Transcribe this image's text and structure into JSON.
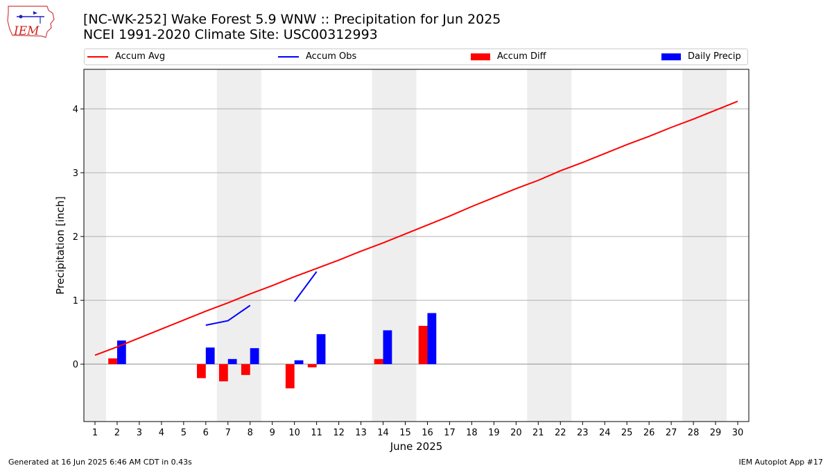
{
  "header": {
    "title_line1": "[NC-WK-252] Wake Forest 5.9 WNW :: Precipitation for Jun 2025",
    "title_line2": "NCEI 1991-2020 Climate Site: USC00312993",
    "logo_text": "IEM"
  },
  "legend": {
    "items": [
      {
        "label": "Accum Avg",
        "kind": "line",
        "color": "#ff0000"
      },
      {
        "label": "Accum Obs",
        "kind": "line",
        "color": "#0000ff"
      },
      {
        "label": "Accum Diff",
        "kind": "rect",
        "color": "#ff0000"
      },
      {
        "label": "Daily Precip",
        "kind": "rect",
        "color": "#0000ff"
      }
    ]
  },
  "footer": {
    "left": "Generated at 16 Jun 2025 6:46 AM CDT in 0.43s",
    "right": "IEM Autoplot App #17"
  },
  "chart_data": {
    "type": "bar",
    "xlabel": "June 2025",
    "ylabel": "Precipitation [inch]",
    "xlim": [
      0.5,
      30.5
    ],
    "ylim": [
      -0.9,
      4.62
    ],
    "yticks": [
      0,
      1,
      2,
      3,
      4
    ],
    "x_tick_labels": [
      "1",
      "2",
      "3",
      "4",
      "5",
      "6",
      "7",
      "8",
      "9",
      "10",
      "11",
      "12",
      "13",
      "14",
      "15",
      "16",
      "17",
      "18",
      "19",
      "20",
      "21",
      "22",
      "23",
      "24",
      "25",
      "26",
      "27",
      "28",
      "29",
      "30"
    ],
    "grid": "horizontal",
    "legend_position": "top",
    "weekend_shading": [
      [
        0.5,
        1.5
      ],
      [
        6.5,
        8.5
      ],
      [
        13.5,
        15.5
      ],
      [
        20.5,
        22.5
      ],
      [
        27.5,
        29.5
      ]
    ],
    "accum_avg": {
      "name": "Accum Avg",
      "color": "#ff0000",
      "x": [
        1,
        2,
        3,
        4,
        5,
        6,
        7,
        8,
        9,
        10,
        11,
        12,
        13,
        14,
        15,
        16,
        17,
        18,
        19,
        20,
        21,
        22,
        23,
        24,
        25,
        26,
        27,
        28,
        29,
        30
      ],
      "y": [
        0.14,
        0.27,
        0.41,
        0.55,
        0.69,
        0.83,
        0.96,
        1.1,
        1.23,
        1.37,
        1.5,
        1.63,
        1.77,
        1.9,
        2.04,
        2.18,
        2.32,
        2.47,
        2.61,
        2.75,
        2.88,
        3.03,
        3.16,
        3.3,
        3.44,
        3.57,
        3.71,
        3.84,
        3.98,
        4.12
      ]
    },
    "accum_obs": {
      "name": "Accum Obs",
      "color": "#0000ff",
      "segments": [
        {
          "x": [
            6,
            7,
            8
          ],
          "y": [
            0.61,
            0.68,
            0.92
          ]
        },
        {
          "x": [
            10,
            11
          ],
          "y": [
            0.98,
            1.45
          ]
        }
      ]
    },
    "accum_diff": {
      "name": "Accum Diff",
      "color": "#ff0000",
      "x": [
        2,
        6,
        7,
        8,
        10,
        11,
        14,
        16
      ],
      "values": [
        0.09,
        -0.22,
        -0.27,
        -0.17,
        -0.38,
        -0.05,
        0.08,
        0.6
      ]
    },
    "daily_precip": {
      "name": "Daily Precip",
      "color": "#0000ff",
      "x": [
        2,
        6,
        7,
        8,
        10,
        11,
        14,
        16
      ],
      "values": [
        0.37,
        0.26,
        0.08,
        0.25,
        0.06,
        0.47,
        0.53,
        0.8
      ]
    }
  }
}
